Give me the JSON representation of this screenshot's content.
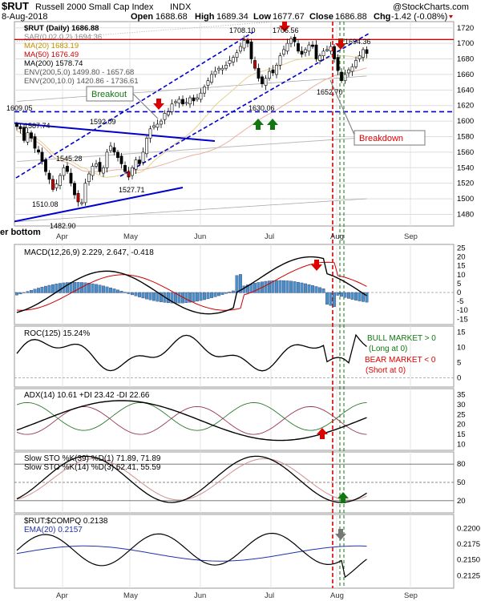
{
  "header": {
    "symbol": "$RUT",
    "name": "Russell 2000 Small Cap Index",
    "exchange": "INDX",
    "date": "8-Aug-2018",
    "open_label": "Open",
    "open": "1688.68",
    "high_label": "High",
    "high": "1689.34",
    "low_label": "Low",
    "low": "1677.67",
    "close_label": "Close",
    "close": "1686.88",
    "chg_label": "Chg",
    "chg": "-1.42 (-0.08%)",
    "credit": "@StockCharts.com",
    "partial_label": "er bottom"
  },
  "colors": {
    "ma20": "#c09000",
    "ma50": "#cc0000",
    "ma200": "#000000",
    "env": "#888888",
    "trend_blue": "#0000cc",
    "red_line": "#cc0000",
    "macd_hist": "#4a90c8",
    "green": "#117711",
    "red": "#dd0000"
  },
  "chart_data": [
    {
      "type": "candlestick",
      "title": "$RUT (Daily) 1686.88",
      "legend": [
        {
          "name": "$RUT (Daily) 1686.88",
          "icon": "candle-icon"
        },
        {
          "name": "SAR(0.02,0.2) 1694.36",
          "icon": "sar-icon"
        },
        {
          "name": "MA(20) 1683.19",
          "color": "#c09000"
        },
        {
          "name": "MA(50) 1676.49",
          "color": "#cc0000"
        },
        {
          "name": "MA(200) 1578.74",
          "color": "#000000"
        },
        {
          "name": "ENV(200,5.0) 1499.80 - 1657.68",
          "color": "#888888"
        },
        {
          "name": "ENV(200,10.0) 1420.86 - 1736.61",
          "color": "#888888"
        }
      ],
      "x_labels": [
        "Apr",
        "May",
        "Jun",
        "Jul",
        "Aug",
        "Sep"
      ],
      "y_ticks": [
        1480,
        1500,
        1520,
        1540,
        1560,
        1580,
        1600,
        1620,
        1640,
        1660,
        1680,
        1700,
        1720
      ],
      "ylim": [
        1465,
        1728
      ],
      "closes": [
        1593,
        1590,
        1575,
        1585,
        1578,
        1565,
        1560,
        1548,
        1535,
        1525,
        1512,
        1519,
        1530,
        1540,
        1535,
        1520,
        1505,
        1496,
        1495,
        1520,
        1532,
        1542,
        1545,
        1535,
        1540,
        1560,
        1568,
        1560,
        1553,
        1545,
        1535,
        1528,
        1540,
        1550,
        1545,
        1560,
        1578,
        1590,
        1594,
        1596,
        1600,
        1610,
        1612,
        1622,
        1625,
        1628,
        1622,
        1624,
        1630,
        1626,
        1630,
        1636,
        1644,
        1652,
        1660,
        1664,
        1668,
        1668,
        1672,
        1678,
        1682,
        1688,
        1696,
        1704,
        1700,
        1680,
        1668,
        1655,
        1648,
        1655,
        1664,
        1662,
        1672,
        1684,
        1692,
        1700,
        1706,
        1702,
        1690,
        1686,
        1692,
        1698,
        1696,
        1680,
        1684,
        1690,
        1692,
        1696,
        1680,
        1665,
        1652,
        1660,
        1666,
        1670,
        1678,
        1684,
        1692,
        1687
      ],
      "annotations": [
        "1609.05",
        "1587.74",
        "1592.09",
        "1545.28",
        "1510.08",
        "1482.90",
        "1527.71",
        "1708.10",
        "1706.56",
        "1630.06",
        "1652.70",
        "1694.36",
        "Breakout",
        "Breakdown"
      ],
      "reference_line": 1612
    },
    {
      "type": "line",
      "title": "MACD(12,26,9) 2.229, 2.647, -0.418",
      "series": [
        {
          "name": "MACD"
        },
        {
          "name": "Signal"
        },
        {
          "name": "Histogram"
        }
      ],
      "y_ticks": [
        25,
        20,
        15,
        10,
        5,
        0,
        -5,
        -10,
        -15
      ],
      "ylim": [
        -18,
        27
      ]
    },
    {
      "type": "line",
      "title": "ROC(125) 15.24%",
      "y_ticks": [
        15,
        10,
        5,
        0
      ],
      "ylim": [
        -3,
        17
      ],
      "notes": [
        {
          "text": "BULL MARKET > 0",
          "color": "#117711"
        },
        {
          "text": "(Long at 0)",
          "color": "#117711"
        },
        {
          "text": "BEAR MARKET < 0",
          "color": "#dd0000"
        },
        {
          "text": "(Short at 0)",
          "color": "#dd0000"
        }
      ]
    },
    {
      "type": "line",
      "title": "ADX(14) 10.61 +DI 23.42 -DI 22.66",
      "y_ticks": [
        35,
        30,
        25,
        20,
        15,
        10
      ],
      "ylim": [
        7,
        38
      ]
    },
    {
      "type": "line",
      "title": "Slow STO %K(39) %D(1) 71.89, 71.89",
      "subtitle": "Slow STO %K(14) %D(3) 62.41, 55.59",
      "y_ticks": [
        80,
        50,
        20
      ],
      "ylim": [
        0,
        100
      ]
    },
    {
      "type": "line",
      "title": "$RUT:$COMPQ 0.2138",
      "subtitle": "EMA(20) 0.2157",
      "y_ticks": [
        "0.2200",
        "0.2175",
        "0.2150",
        "0.2125"
      ],
      "ylim": [
        0.2105,
        0.2222
      ]
    }
  ]
}
